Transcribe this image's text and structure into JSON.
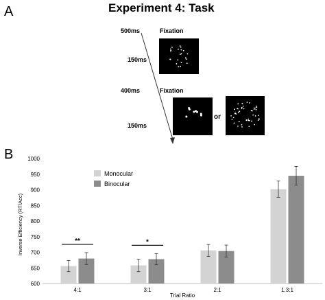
{
  "panel_a": {
    "letter": "A",
    "title": "Experiment 4: Task",
    "timeline": [
      {
        "duration": "500ms",
        "label": "Fixation"
      },
      {
        "duration": "150ms",
        "label": ""
      },
      {
        "duration": "400ms",
        "label": "Fixation"
      },
      {
        "duration": "150ms",
        "label": ""
      }
    ],
    "or_label": "or"
  },
  "panel_b": {
    "letter": "B"
  },
  "chart_data": {
    "type": "bar",
    "categories": [
      "4:1",
      "3:1",
      "2:1",
      "1.3:1"
    ],
    "series": [
      {
        "name": "Monocular",
        "values": [
          656,
          658,
          706,
          902
        ],
        "errors": [
          18,
          20,
          19,
          26
        ],
        "color": "#d3d3d3"
      },
      {
        "name": "Binocular",
        "values": [
          680,
          678,
          704,
          945
        ],
        "errors": [
          19,
          18,
          19,
          30
        ],
        "color": "#8c8c8c"
      }
    ],
    "xlabel": "Trial Ratio",
    "ylabel": "Inverse Efficiency (RT/Acc)",
    "ylim": [
      600,
      1000
    ],
    "yticks": [
      600,
      650,
      700,
      750,
      800,
      850,
      900,
      950,
      1000
    ],
    "significance": [
      {
        "category": "4:1",
        "label": "**"
      },
      {
        "category": "3:1",
        "label": "*"
      }
    ],
    "legend_position": "top-left",
    "grid": false
  }
}
